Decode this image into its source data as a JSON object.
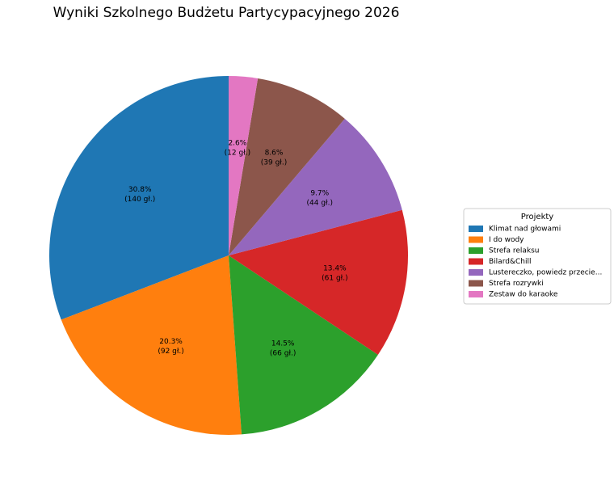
{
  "chart_data": {
    "type": "pie",
    "title": "Wyniki Szkolnego Budżetu Partycypacyjnego 2026",
    "legend_title": "Projekty",
    "legend": "right",
    "categories": [
      "Klimat nad głowami",
      "I do wody",
      "Strefa relaksu",
      "Bilard&Chill",
      "Lustereczko, powiedz przecie...",
      "Strefa rozrywki",
      "Zestaw do karaoke"
    ],
    "values": [
      30.8,
      20.3,
      14.5,
      13.4,
      9.7,
      8.6,
      2.6
    ],
    "value_labels": [
      "30.8%",
      "20.3%",
      "14.5%",
      "13.4%",
      "9.7%",
      "8.6%",
      "2.6%"
    ],
    "votes": [
      140,
      92,
      66,
      61,
      44,
      39,
      12
    ],
    "vote_labels": [
      "(140 gł.)",
      "(92 gł.)",
      "(66 gł.)",
      "(61 gł.)",
      "(44 gł.)",
      "(39 gł.)",
      "(12 gł.)"
    ],
    "colors": [
      "#1f77b4",
      "#ff7f0e",
      "#2ca02c",
      "#d62728",
      "#9467bd",
      "#8c564b",
      "#e377c2"
    ]
  }
}
